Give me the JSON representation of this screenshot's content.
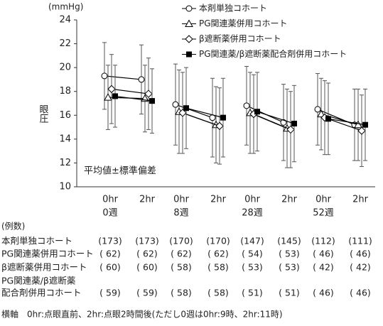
{
  "chart_data": {
    "type": "line",
    "unit_label": "(mmHg)",
    "y_label": "眼圧",
    "annotation": "平均値±標準偏差",
    "categories": [
      "0hr",
      "2hr",
      "0hr",
      "2hr",
      "0hr",
      "2hr",
      "0hr",
      "2hr"
    ],
    "groups": [
      "0週",
      "8週",
      "28週",
      "52週"
    ],
    "ylim": [
      10,
      24
    ],
    "yticks": [
      10,
      12,
      14,
      16,
      18,
      20,
      22,
      24
    ],
    "series": [
      {
        "name": "本剤単独コホート",
        "color": "#000000",
        "marker": "circle",
        "values": [
          19.3,
          19.0,
          16.9,
          15.8,
          16.8,
          15.4,
          16.5,
          15.2
        ],
        "errors": [
          2.8,
          2.9,
          3.4,
          3.3,
          3.3,
          3.2,
          3.0,
          3.0
        ]
      },
      {
        "name": "PG関連薬併用コホート",
        "color": "#000000",
        "marker": "triangle",
        "values": [
          17.5,
          17.4,
          16.3,
          15.2,
          16.2,
          14.9,
          16.1,
          15.2
        ],
        "errors": [
          2.7,
          2.8,
          3.5,
          3.2,
          3.4,
          3.3,
          3.0,
          3.0
        ]
      },
      {
        "name": "β遮断薬併用コホート",
        "color": "#000000",
        "marker": "diamond",
        "values": [
          18.2,
          17.8,
          16.2,
          15.1,
          16.1,
          14.8,
          15.8,
          14.7
        ],
        "errors": [
          2.9,
          3.0,
          3.4,
          3.2,
          3.3,
          3.2,
          3.1,
          3.0
        ]
      },
      {
        "name": "PG関連薬/β遮断薬配合剤併用コホート",
        "color": "#000000",
        "marker": "square",
        "values": [
          17.6,
          17.2,
          16.6,
          15.8,
          16.3,
          15.3,
          15.7,
          15.2
        ],
        "errors": [
          2.6,
          2.7,
          3.4,
          3.3,
          3.3,
          3.2,
          3.0,
          3.0
        ]
      }
    ]
  },
  "table": {
    "caption": "(例数)",
    "rows": [
      {
        "label": [
          "本剤単独コホート"
        ],
        "cells": [
          "(173)",
          "(173)",
          "(170)",
          "(170)",
          "(147)",
          "(145)",
          "(112)",
          "(111)"
        ]
      },
      {
        "label": [
          "PG関連薬併用コホート"
        ],
        "cells": [
          "( 62)",
          "( 62)",
          "( 62)",
          "( 62)",
          "( 54)",
          "( 53)",
          "( 46)",
          "( 46)"
        ]
      },
      {
        "label": [
          "β遮断薬併用コホート"
        ],
        "cells": [
          "( 60)",
          "( 60)",
          "( 58)",
          "( 58)",
          "( 53)",
          "( 53)",
          "( 42)",
          "( 42)"
        ]
      },
      {
        "label": [
          "PG関連薬/β遮断薬",
          "配合剤併用コホート"
        ],
        "cells": [
          "( 59)",
          "( 59)",
          "( 58)",
          "( 58)",
          "( 51)",
          "( 51)",
          "( 46)",
          "( 46)"
        ]
      }
    ]
  },
  "footnote": "横軸　0hr:点眼直前、2hr:点眼2時間後(ただし0週は0hr:9時、2hr:11時)"
}
